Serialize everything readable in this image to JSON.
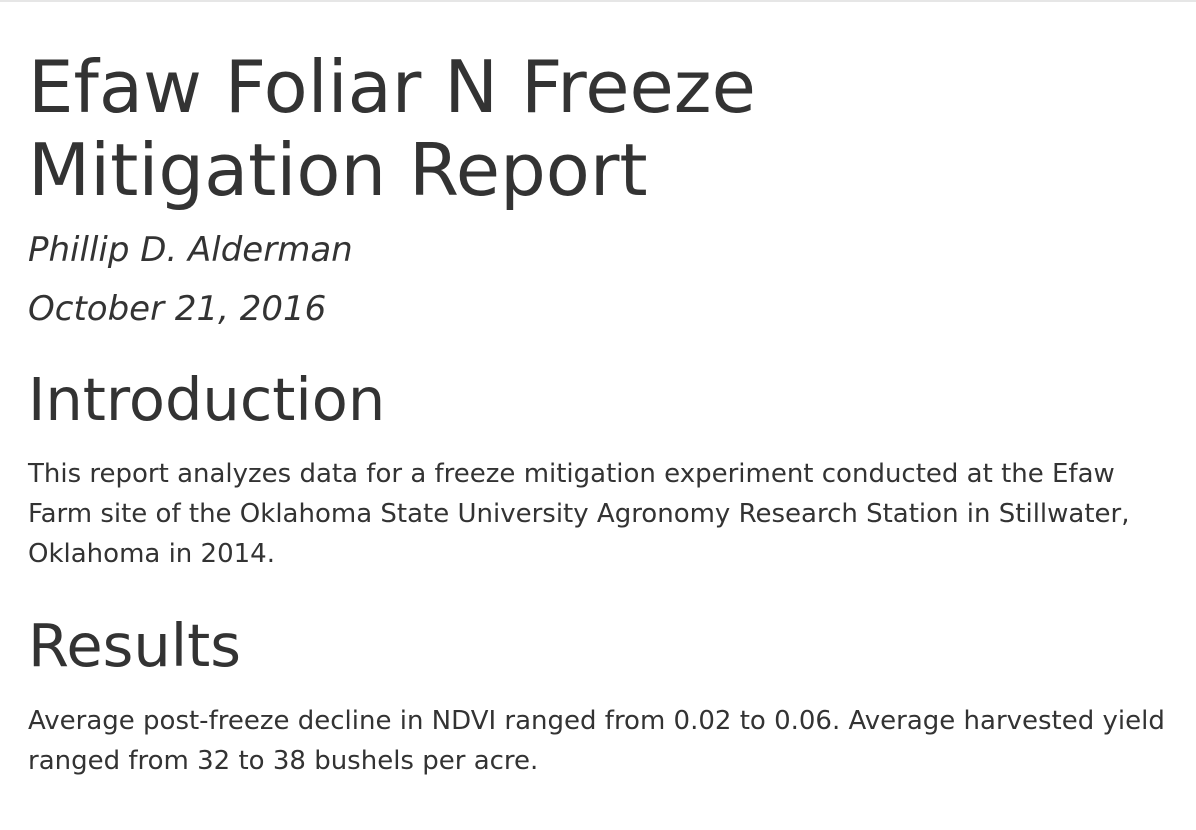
{
  "document": {
    "title": "Efaw Foliar N Freeze\nMitigation Report",
    "author": "Phillip D. Alderman",
    "date": "October 21, 2016"
  },
  "sections": [
    {
      "heading": "Introduction",
      "body": "This report analyzes data for a freeze mitigation experiment conducted at the Efaw Farm site of the Oklahoma State University Agronomy Research Station in Stillwater, Oklahoma in 2014."
    },
    {
      "heading": "Results",
      "body": "Average post-freeze decline in NDVI ranged from 0.02 to 0.06. Average harvested yield ranged from 32 to 38 bushels per acre."
    }
  ]
}
